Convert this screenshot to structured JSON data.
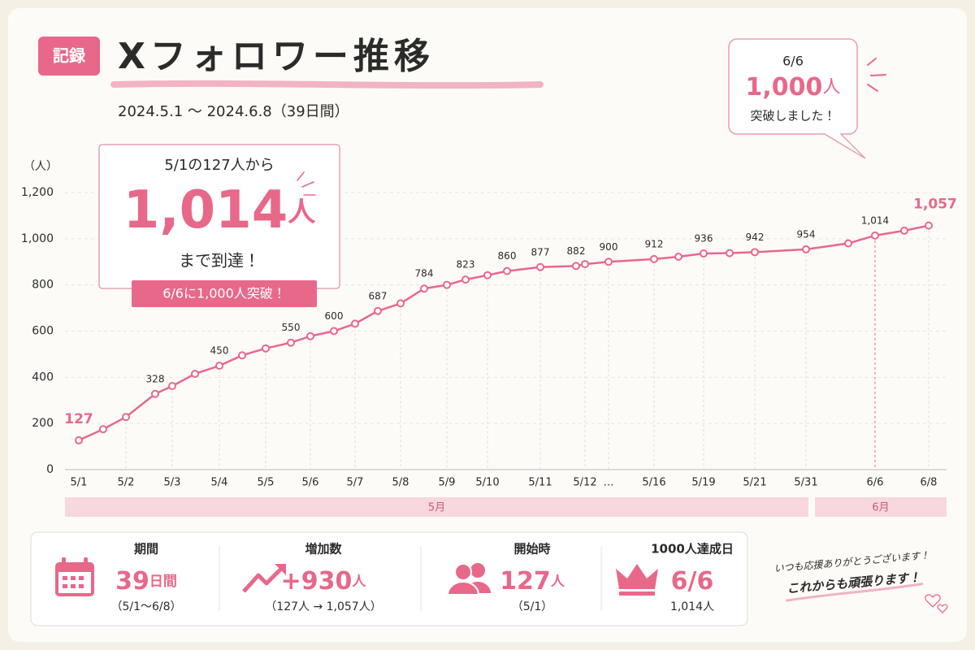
{
  "header": {
    "badge": "記録",
    "title": "Xフォロワー推移",
    "period": "2024.5.1 〜 2024.6.8（39日間）"
  },
  "callout": {
    "intro": "5/1の127人から",
    "value": "1,014",
    "unit": "人",
    "outro": "まで到達！",
    "badge": "6/6に1,000人突破！"
  },
  "bubble": {
    "date": "6/6",
    "value": "1,000",
    "unit": "人",
    "text": "突破しました！"
  },
  "chart_data": {
    "type": "line",
    "y_label": "（人）",
    "color": "#e8688a",
    "categories": [
      "5/1",
      null,
      "5/2",
      null,
      "5/3",
      null,
      "5/4",
      null,
      "5/5",
      null,
      "5/6",
      null,
      "5/7",
      null,
      "5/8",
      null,
      "5/9",
      null,
      "5/10",
      null,
      "5/11",
      null,
      "5/12",
      "…",
      "5/16",
      null,
      "5/19",
      null,
      "5/21",
      "5/31",
      null,
      "6/6",
      null,
      "6/8"
    ],
    "values": [
      127,
      175,
      228,
      328,
      362,
      415,
      450,
      495,
      525,
      550,
      578,
      600,
      632,
      687,
      720,
      784,
      800,
      823,
      842,
      860,
      877,
      882,
      890,
      900,
      912,
      922,
      936,
      938,
      942,
      954,
      980,
      1014,
      1035,
      1057
    ],
    "value_labels": [
      "127",
      null,
      null,
      "328",
      null,
      null,
      "450",
      null,
      null,
      "550",
      null,
      "600",
      null,
      "687",
      null,
      "784",
      null,
      "823",
      null,
      "860",
      "877",
      "882",
      null,
      "900",
      "912",
      null,
      "936",
      null,
      "942",
      "954",
      null,
      "1,014",
      null,
      "1,057"
    ],
    "ylim": [
      0,
      1200
    ],
    "yticks": [
      0,
      200,
      400,
      600,
      800,
      {
        "value": 1000,
        "label": "1,000"
      },
      {
        "value": 1200,
        "label": "1,200"
      }
    ],
    "grid": true,
    "months": [
      "5月",
      "6月"
    ]
  },
  "stats": [
    {
      "label": "期間",
      "value": "39",
      "unit": "日間",
      "note": "（5/1〜6/8）"
    },
    {
      "label": "増加数",
      "value": "+930",
      "unit": "人",
      "note": "（127人 → 1,057人）"
    },
    {
      "label": "開始時",
      "value": "127",
      "unit": "人",
      "note": "（5/1）"
    },
    {
      "label": "1000人達成日",
      "value": "6/6",
      "note": "1,014人"
    }
  ],
  "message": {
    "line1": "いつも応援ありがとうございます！",
    "line2": "これからも頑張ります！"
  }
}
